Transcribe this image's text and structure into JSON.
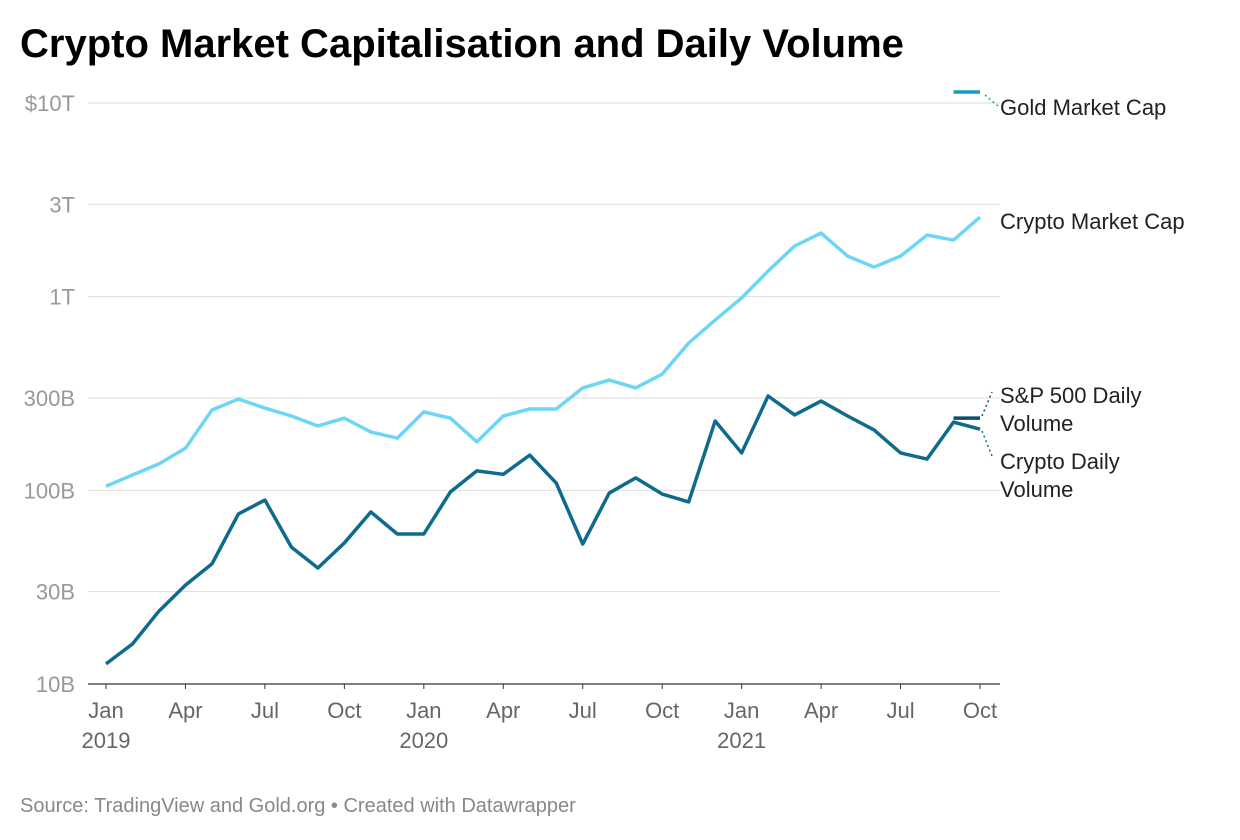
{
  "chart_data": {
    "type": "line",
    "title": "Crypto Market Capitalisation and Daily Volume",
    "source": "Source: TradingView and Gold.org • Created with Datawrapper",
    "x": [
      "2019-01",
      "2019-02",
      "2019-03",
      "2019-04",
      "2019-05",
      "2019-06",
      "2019-07",
      "2019-08",
      "2019-09",
      "2019-10",
      "2019-11",
      "2019-12",
      "2020-01",
      "2020-02",
      "2020-03",
      "2020-04",
      "2020-05",
      "2020-06",
      "2020-07",
      "2020-08",
      "2020-09",
      "2020-10",
      "2020-11",
      "2020-12",
      "2021-01",
      "2021-02",
      "2021-03",
      "2021-04",
      "2021-05",
      "2021-06",
      "2021-07",
      "2021-08",
      "2021-09",
      "2021-10"
    ],
    "xlim": [
      "2019-01",
      "2021-10"
    ],
    "xticks": [
      {
        "value": "2019-01",
        "label": [
          "Jan",
          "2019"
        ]
      },
      {
        "value": "2019-04",
        "label": "Apr"
      },
      {
        "value": "2019-07",
        "label": "Jul"
      },
      {
        "value": "2019-10",
        "label": "Oct"
      },
      {
        "value": "2020-01",
        "label": [
          "Jan",
          "2020"
        ]
      },
      {
        "value": "2020-04",
        "label": "Apr"
      },
      {
        "value": "2020-07",
        "label": "Jul"
      },
      {
        "value": "2020-10",
        "label": "Oct"
      },
      {
        "value": "2021-01",
        "label": [
          "Jan",
          "2021"
        ]
      },
      {
        "value": "2021-04",
        "label": "Apr"
      },
      {
        "value": "2021-07",
        "label": "Jul"
      },
      {
        "value": "2021-10",
        "label": "Oct"
      }
    ],
    "yscale": "log",
    "ylim": [
      10,
      10000
    ],
    "yticks": [
      {
        "value": 10,
        "label": "10B"
      },
      {
        "value": 30,
        "label": "30B"
      },
      {
        "value": 100,
        "label": "100B"
      },
      {
        "value": 300,
        "label": "300B"
      },
      {
        "value": 1000,
        "label": "1T"
      },
      {
        "value": 3000,
        "label": "3T"
      },
      {
        "value": 10000,
        "label": "$10T"
      }
    ],
    "grid": true,
    "series": [
      {
        "name": "Gold Market Cap",
        "color": "#1a9bc4",
        "values": [
          null,
          null,
          null,
          null,
          null,
          null,
          null,
          null,
          null,
          null,
          null,
          null,
          null,
          null,
          null,
          null,
          null,
          null,
          null,
          null,
          null,
          null,
          null,
          null,
          null,
          null,
          null,
          null,
          null,
          null,
          null,
          null,
          11400,
          11400
        ]
      },
      {
        "name": "Crypto Market Cap",
        "color": "#6dd6f7",
        "values": [
          105,
          120,
          137,
          165,
          260,
          296,
          266,
          242,
          215,
          236,
          200,
          186,
          254,
          236,
          178,
          242,
          263,
          263,
          338,
          371,
          338,
          398,
          576,
          757,
          984,
          1356,
          1825,
          2130,
          1620,
          1422,
          1620,
          2080,
          1960,
          2577
        ]
      },
      {
        "name": "S&P 500 Daily Volume",
        "color": "#0b4f6c",
        "values": [
          null,
          null,
          null,
          null,
          null,
          null,
          null,
          null,
          null,
          null,
          null,
          null,
          null,
          null,
          null,
          null,
          null,
          null,
          null,
          null,
          null,
          null,
          null,
          null,
          null,
          null,
          null,
          null,
          null,
          null,
          null,
          null,
          236,
          236
        ]
      },
      {
        "name": "Crypto Daily Volume",
        "color": "#0e6b8c",
        "values": [
          12.7,
          16.1,
          23.8,
          32.4,
          41.7,
          75.5,
          89.1,
          50.9,
          39.7,
          53.5,
          77.3,
          59.5,
          59.5,
          98,
          126,
          121,
          152,
          109,
          52.8,
          96.8,
          116,
          95.7,
          87.1,
          228,
          156,
          307,
          245,
          289,
          242,
          205,
          156,
          145,
          225,
          207
        ]
      }
    ]
  }
}
